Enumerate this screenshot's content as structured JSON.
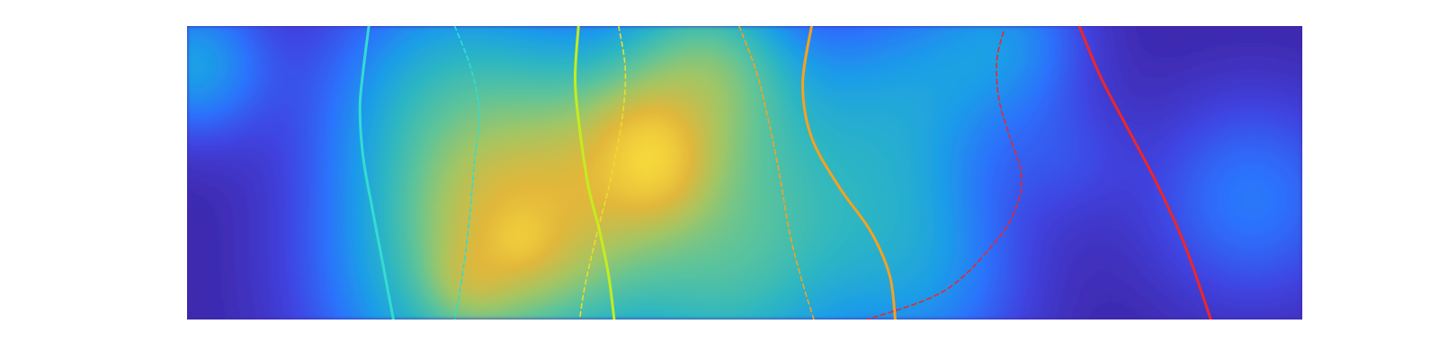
{
  "chart_data": {
    "type": "heatmap",
    "title": "",
    "xlabel": "",
    "ylabel": "",
    "axes_visible": false,
    "grid": false,
    "legend": "none",
    "xlim": [
      0,
      1
    ],
    "ylim": [
      0,
      1
    ],
    "colormap": "parula",
    "colormap_stops": [
      "#3e26a8",
      "#4043e0",
      "#2c72fc",
      "#1c9ee8",
      "#2eb7c1",
      "#5ec49a",
      "#a3c664",
      "#e2b73a",
      "#fce13a"
    ],
    "density_blobs": [
      {
        "x": 0.005,
        "y": 0.87,
        "sigma": 0.045,
        "weight": 0.3
      },
      {
        "x": 0.24,
        "y": 0.74,
        "sigma": 0.08,
        "weight": 0.38
      },
      {
        "x": 0.245,
        "y": 0.12,
        "sigma": 0.085,
        "weight": 0.42
      },
      {
        "x": 0.255,
        "y": 0.13,
        "sigma": 0.025,
        "weight": 0.22
      },
      {
        "x": 0.28,
        "y": 0.45,
        "sigma": 0.06,
        "weight": 0.22
      },
      {
        "x": 0.29,
        "y": 0.27,
        "sigma": 0.05,
        "weight": 0.26
      },
      {
        "x": 0.3,
        "y": 0.27,
        "sigma": 0.018,
        "weight": 0.18
      },
      {
        "x": 0.34,
        "y": 0.3,
        "sigma": 0.06,
        "weight": 0.3
      },
      {
        "x": 0.385,
        "y": 0.6,
        "sigma": 0.07,
        "weight": 0.35
      },
      {
        "x": 0.41,
        "y": 0.55,
        "sigma": 0.045,
        "weight": 0.45
      },
      {
        "x": 0.42,
        "y": 0.49,
        "sigma": 0.028,
        "weight": 0.22
      },
      {
        "x": 0.415,
        "y": 0.62,
        "sigma": 0.028,
        "weight": 0.2
      },
      {
        "x": 0.465,
        "y": 0.87,
        "sigma": 0.05,
        "weight": 0.45
      },
      {
        "x": 0.48,
        "y": 0.12,
        "sigma": 0.075,
        "weight": 0.4
      },
      {
        "x": 0.505,
        "y": 0.68,
        "sigma": 0.06,
        "weight": 0.18
      },
      {
        "x": 0.52,
        "y": 0.38,
        "sigma": 0.06,
        "weight": 0.16
      },
      {
        "x": 0.64,
        "y": 0.77,
        "sigma": 0.065,
        "weight": 0.24
      },
      {
        "x": 0.63,
        "y": 0.42,
        "sigma": 0.06,
        "weight": 0.15
      },
      {
        "x": 0.66,
        "y": 0.12,
        "sigma": 0.065,
        "weight": 0.22
      },
      {
        "x": 0.735,
        "y": 0.95,
        "sigma": 0.05,
        "weight": 0.22
      },
      {
        "x": 0.79,
        "y": 0.55,
        "sigma": 0.04,
        "weight": 0.08
      },
      {
        "x": 0.955,
        "y": 0.41,
        "sigma": 0.065,
        "weight": 0.2
      }
    ],
    "series": [
      {
        "color": "#33dcd0",
        "style": "solid",
        "x": [
          0.163,
          0.158,
          0.155,
          0.158,
          0.166,
          0.174,
          0.18,
          0.185
        ],
        "y": [
          1.0,
          0.85,
          0.72,
          0.55,
          0.38,
          0.22,
          0.1,
          0.0
        ]
      },
      {
        "color": "#33dcd0",
        "style": "dashed",
        "x": [
          0.24,
          0.255,
          0.262,
          0.258,
          0.254,
          0.248,
          0.24
        ],
        "y": [
          1.0,
          0.85,
          0.7,
          0.55,
          0.38,
          0.18,
          0.0
        ]
      },
      {
        "color": "#c5ec1e",
        "style": "solid",
        "x": [
          0.351,
          0.348,
          0.352,
          0.36,
          0.37,
          0.378,
          0.383
        ],
        "y": [
          1.0,
          0.82,
          0.65,
          0.45,
          0.3,
          0.15,
          0.0
        ]
      },
      {
        "color": "#eddb2e",
        "style": "dashed",
        "x": [
          0.387,
          0.393,
          0.39,
          0.38,
          0.368,
          0.357,
          0.352
        ],
        "y": [
          1.0,
          0.85,
          0.68,
          0.48,
          0.3,
          0.12,
          0.0
        ]
      },
      {
        "color": "#f6a11f",
        "style": "solid",
        "x": [
          0.56,
          0.552,
          0.56,
          0.585,
          0.613,
          0.63,
          0.635
        ],
        "y": [
          1.0,
          0.8,
          0.62,
          0.45,
          0.3,
          0.15,
          0.0
        ]
      },
      {
        "color": "#f6a11f",
        "style": "dashed",
        "x": [
          0.495,
          0.51,
          0.52,
          0.531,
          0.54,
          0.55,
          0.562
        ],
        "y": [
          1.0,
          0.85,
          0.7,
          0.5,
          0.3,
          0.15,
          0.0
        ]
      },
      {
        "color": "#ef2626",
        "style": "dashed",
        "x": [
          0.732,
          0.726,
          0.728,
          0.738,
          0.748,
          0.745,
          0.728,
          0.68,
          0.61
        ],
        "y": [
          0.98,
          0.88,
          0.75,
          0.62,
          0.5,
          0.4,
          0.28,
          0.1,
          0.0
        ]
      },
      {
        "color": "#ef2626",
        "style": "solid",
        "x": [
          0.8,
          0.82,
          0.845,
          0.87,
          0.895,
          0.918
        ],
        "y": [
          1.0,
          0.82,
          0.64,
          0.46,
          0.25,
          0.0
        ]
      }
    ]
  }
}
